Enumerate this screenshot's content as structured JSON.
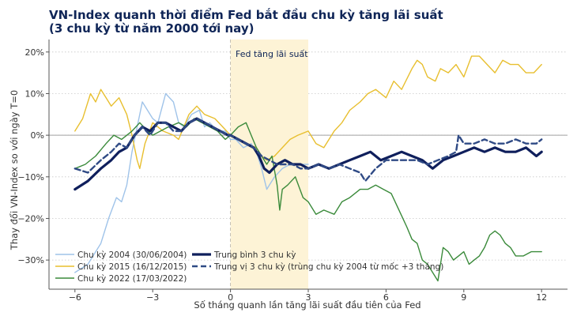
{
  "chart_data": {
    "type": "line",
    "title": "VN-Index quanh thời điểm Fed bắt đầu chu kỳ tăng lãi suất",
    "subtitle": "(3 chu kỳ từ năm 2000 tới nay)",
    "xlabel": "Số tháng quanh lần tăng lãi suất đầu tiên của Fed",
    "ylabel": "Thay đổi VN-Index so với ngày T=0",
    "xlim": [
      -7.0,
      13.0
    ],
    "ylim": [
      -37,
      23
    ],
    "xticks": [
      -6,
      -3,
      0,
      3,
      6,
      9,
      12
    ],
    "xtick_labels": [
      "−6",
      "−3",
      "0",
      "3",
      "6",
      "9",
      "12"
    ],
    "yticks": [
      -30,
      -20,
      -10,
      0,
      10,
      20
    ],
    "ytick_labels": [
      "−30%",
      "−20%",
      "−10%",
      "0%",
      "10%",
      "20%"
    ],
    "grid": "horizontal-dotted",
    "shaded_region": {
      "x0": 0,
      "x1": 3,
      "label": "Fed tăng lãi suất",
      "color": "#fdf3d6"
    },
    "vline": {
      "x": 0
    },
    "zero_line": {
      "y": 0
    },
    "legend_position": "bottom-left",
    "series": [
      {
        "name": "Chu kỳ 2004 (30/06/2004)",
        "color": "#9fc3e9",
        "style": "solid",
        "width": 1.4,
        "x": [
          -6,
          -5.5,
          -5,
          -4.7,
          -4.4,
          -4.2,
          -4.0,
          -3.8,
          -3.6,
          -3.4,
          -3.2,
          -3.0,
          -2.8,
          -2.5,
          -2.2,
          -2.0,
          -1.8,
          -1.5,
          -1.2,
          -1.0,
          -0.8,
          -0.5,
          -0.2,
          0,
          0.2,
          0.5,
          0.8,
          1.0,
          1.2,
          1.4,
          1.5,
          1.7,
          2.0,
          2.3,
          2.6,
          3.0
        ],
        "y": [
          -33,
          -31,
          -26,
          -20,
          -15,
          -16,
          -12,
          -4,
          2,
          8,
          6,
          4,
          3,
          10,
          8,
          3,
          2,
          5,
          6,
          2,
          3,
          1,
          1,
          -1,
          -1,
          -3,
          -2,
          -4,
          -8,
          -13,
          -12,
          -10,
          -8,
          -7,
          -7,
          -7
        ]
      },
      {
        "name": "Chu kỳ 2015 (16/12/2015)",
        "color": "#e8bf2f",
        "style": "solid",
        "width": 1.4,
        "x": [
          -6,
          -5.7,
          -5.4,
          -5.2,
          -5.0,
          -4.8,
          -4.6,
          -4.3,
          -4.0,
          -3.8,
          -3.6,
          -3.5,
          -3.3,
          -3.0,
          -2.6,
          -2.2,
          -2.0,
          -1.6,
          -1.3,
          -1.0,
          -0.6,
          -0.3,
          0,
          0.3,
          0.6,
          1.0,
          1.2,
          1.4,
          1.7,
          2.0,
          2.3,
          2.6,
          3.0,
          3.3,
          3.6,
          4.0,
          4.3,
          4.6,
          5.0,
          5.3,
          5.6,
          6.0,
          6.3,
          6.6,
          7.0,
          7.2,
          7.4,
          7.6,
          7.9,
          8.1,
          8.4,
          8.7,
          9.0,
          9.3,
          9.6,
          9.9,
          10.2,
          10.5,
          10.8,
          11.1,
          11.4,
          11.7,
          12.0
        ],
        "y": [
          1,
          4,
          10,
          8,
          11,
          9,
          7,
          9,
          5,
          0,
          -6,
          -8,
          -2,
          3,
          1,
          0,
          -1,
          5,
          7,
          5,
          4,
          2,
          0,
          -1,
          -2,
          -3,
          -5,
          -6,
          -5,
          -3,
          -1,
          0,
          1,
          -2,
          -3,
          1,
          3,
          6,
          8,
          10,
          11,
          9,
          13,
          11,
          16,
          18,
          17,
          14,
          13,
          16,
          15,
          17,
          14,
          19,
          19,
          17,
          15,
          18,
          17,
          17,
          15,
          15,
          17
        ]
      },
      {
        "name": "Chu kỳ 2022 (17/03/2022)",
        "color": "#3a8a3a",
        "style": "solid",
        "width": 1.4,
        "x": [
          -6,
          -5.6,
          -5.2,
          -4.8,
          -4.5,
          -4.2,
          -3.8,
          -3.5,
          -3.2,
          -3.0,
          -2.7,
          -2.4,
          -2.0,
          -1.7,
          -1.4,
          -1.1,
          -0.8,
          -0.5,
          -0.2,
          0,
          0.3,
          0.6,
          0.8,
          1.0,
          1.2,
          1.4,
          1.6,
          1.8,
          1.9,
          2.0,
          2.2,
          2.5,
          2.8,
          3.0,
          3.3,
          3.6,
          4.0,
          4.3,
          4.6,
          5.0,
          5.3,
          5.6,
          5.9,
          6.2,
          6.5,
          6.8,
          7.0,
          7.2,
          7.4,
          7.6,
          7.8,
          8.0,
          8.2,
          8.4,
          8.6,
          8.8,
          9.0,
          9.2,
          9.4,
          9.6,
          9.8,
          10.0,
          10.2,
          10.4,
          10.6,
          10.8,
          11.0,
          11.3,
          11.6,
          12.0
        ],
        "y": [
          -8,
          -7,
          -5,
          -2,
          0,
          -1,
          1,
          3,
          1,
          0,
          1,
          2,
          3,
          2,
          4,
          3,
          2,
          1,
          -1,
          0,
          2,
          3,
          0,
          -3,
          -5,
          -7,
          -5,
          -12,
          -18,
          -13,
          -12,
          -10,
          -15,
          -16,
          -19,
          -18,
          -19,
          -16,
          -15,
          -13,
          -13,
          -12,
          -13,
          -14,
          -18,
          -22,
          -25,
          -26,
          -30,
          -31,
          -33,
          -35,
          -27,
          -28,
          -30,
          -29,
          -28,
          -31,
          -30,
          -29,
          -27,
          -24,
          -23,
          -24,
          -26,
          -27,
          -29,
          -29,
          -28,
          -28
        ]
      },
      {
        "name": "Trung bình 3 chu kỳ",
        "color": "#0f1f5c",
        "style": "solid",
        "width": 3.2,
        "x": [
          -6,
          -5.5,
          -5,
          -4.6,
          -4.3,
          -4.0,
          -3.7,
          -3.4,
          -3.1,
          -2.8,
          -2.5,
          -2.2,
          -1.9,
          -1.6,
          -1.3,
          -1.0,
          -0.7,
          -0.4,
          -0.1,
          0,
          0.3,
          0.6,
          0.9,
          1.1,
          1.3,
          1.5,
          1.8,
          2.1,
          2.4,
          2.7,
          3.0,
          3.4,
          3.8,
          4.2,
          4.6,
          5.0,
          5.4,
          5.8,
          6.2,
          6.6,
          7.0,
          7.4,
          7.8,
          8.2,
          8.6,
          9.0,
          9.4,
          9.8,
          10.2,
          10.6,
          11.0,
          11.4,
          11.8,
          12.0
        ],
        "y": [
          -13,
          -11,
          -8,
          -6,
          -4,
          -3,
          0,
          2,
          1,
          3,
          3,
          2,
          1,
          3,
          4,
          3,
          2,
          1,
          0,
          0,
          -1,
          -2,
          -3,
          -5,
          -8,
          -9,
          -7,
          -6,
          -7,
          -7,
          -8,
          -7,
          -8,
          -7,
          -6,
          -5,
          -4,
          -6,
          -5,
          -4,
          -5,
          -6,
          -8,
          -6,
          -5,
          -4,
          -3,
          -4,
          -3,
          -4,
          -4,
          -3,
          -5,
          -4
        ]
      },
      {
        "name": "Trung vị 3 chu kỳ (trùng chu kỳ 2004 từ mốc +3 tháng)",
        "color": "#2f4a85",
        "style": "dashed",
        "width": 2.4,
        "x": [
          -6,
          -5.5,
          -5,
          -4.6,
          -4.3,
          -4.0,
          -3.7,
          -3.4,
          -3.1,
          -2.8,
          -2.5,
          -2.2,
          -1.9,
          -1.6,
          -1.3,
          -1.0,
          -0.7,
          -0.4,
          -0.1,
          0,
          0.3,
          0.6,
          0.9,
          1.2,
          1.5,
          1.8,
          2.1,
          2.4,
          2.7,
          3.0,
          3.4,
          3.8,
          4.2,
          4.6,
          5.0,
          5.2,
          5.6,
          6.0,
          6.4,
          6.8,
          7.2,
          7.6,
          8.0,
          8.4,
          8.7,
          8.8,
          9.0,
          9.4,
          9.8,
          10.2,
          10.6,
          11.0,
          11.4,
          11.8,
          12.0
        ],
        "y": [
          -8,
          -9,
          -6,
          -4,
          -2,
          -3,
          0,
          2,
          0,
          3,
          3,
          1,
          1,
          3,
          4,
          3,
          2,
          1,
          0,
          0,
          -1,
          -2,
          -3,
          -5,
          -6,
          -7,
          -7,
          -7,
          -8,
          -8,
          -7,
          -8,
          -7,
          -8,
          -9,
          -11,
          -8,
          -6,
          -6,
          -6,
          -6,
          -7,
          -6,
          -5,
          -4,
          0,
          -2,
          -2,
          -1,
          -2,
          -2,
          -1,
          -2,
          -2,
          -1
        ]
      }
    ]
  }
}
